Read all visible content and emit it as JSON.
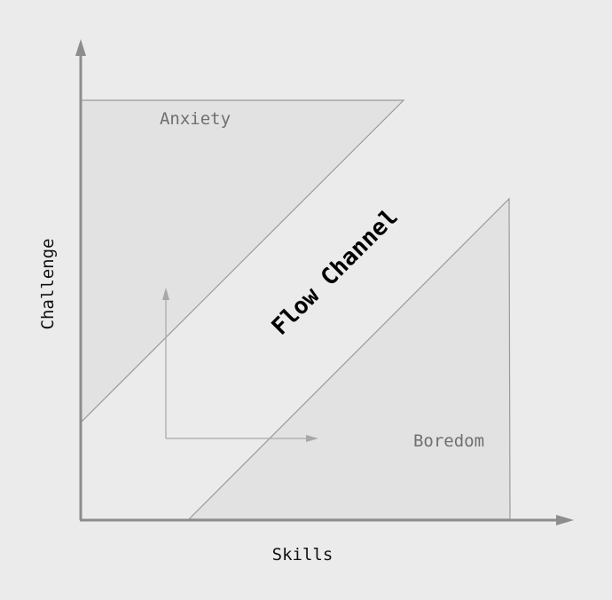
{
  "diagram": {
    "regions": {
      "anxiety": "Anxiety",
      "boredom": "Boredom",
      "channel": "Flow Channel"
    },
    "axes": {
      "x_label": "Skills",
      "y_label": "Challenge"
    },
    "colors": {
      "background": "#ebebeb",
      "region_fill": "#e2e2e2",
      "region_stroke": "#9a9a9a",
      "axis": "#8d8d8d",
      "inner_arrow": "#a8a8a8"
    }
  }
}
